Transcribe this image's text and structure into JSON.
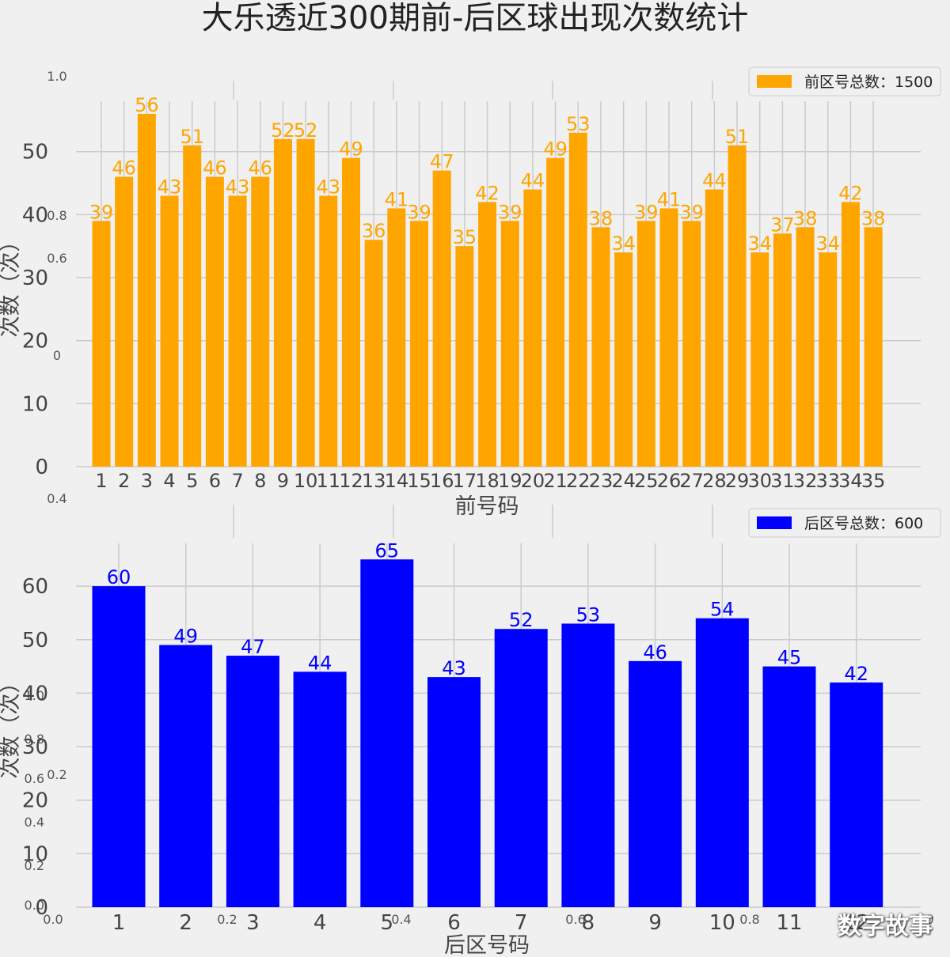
{
  "page": {
    "title": "大乐透近300期前-后区球出现次数统计",
    "watermark": "数字故事"
  },
  "colors": {
    "front": "#FFA500",
    "back": "#0000FF",
    "grid": "#CBCBCB",
    "background": "#F0F0F0",
    "text": "#444444"
  },
  "ghost_ticks": {
    "outer_y": [
      "0.0",
      "0.2",
      "0.4",
      "0.6",
      "0.8",
      "1.0"
    ],
    "outer_x": [
      "0.0",
      "0.2",
      "0.4",
      "0.6",
      "0.8",
      "1.0"
    ],
    "subplot_y": [
      "0",
      "0.2",
      "0.4",
      "0.6",
      "0.8",
      "1.0"
    ]
  },
  "chart_data": [
    {
      "type": "bar",
      "xlabel": "前号码",
      "ylabel": "次数（次）",
      "legend": {
        "label": "前区号总数：1500",
        "position": "top-right"
      },
      "ylim": [
        0,
        58
      ],
      "yticks": [
        0,
        10,
        20,
        30,
        40,
        50
      ],
      "categories": [
        "1",
        "2",
        "3",
        "4",
        "5",
        "6",
        "7",
        "8",
        "9",
        "10",
        "11",
        "12",
        "13",
        "14",
        "15",
        "16",
        "17",
        "18",
        "19",
        "20",
        "21",
        "22",
        "23",
        "24",
        "25",
        "26",
        "27",
        "28",
        "29",
        "30",
        "31",
        "32",
        "33",
        "34",
        "35"
      ],
      "values": [
        39,
        46,
        56,
        43,
        51,
        46,
        43,
        46,
        52,
        52,
        43,
        49,
        36,
        41,
        39,
        47,
        35,
        42,
        39,
        44,
        49,
        53,
        38,
        34,
        39,
        41,
        39,
        44,
        51,
        34,
        37,
        38,
        34,
        42,
        38
      ],
      "grid": true
    },
    {
      "type": "bar",
      "xlabel": "后区号码",
      "ylabel": "次数（次）",
      "legend": {
        "label": "后区号总数：600",
        "position": "top-right"
      },
      "ylim": [
        0,
        68
      ],
      "yticks": [
        0,
        10,
        20,
        30,
        40,
        50,
        60
      ],
      "categories": [
        "1",
        "2",
        "3",
        "4",
        "5",
        "6",
        "7",
        "8",
        "9",
        "10",
        "11",
        "12"
      ],
      "values": [
        60,
        49,
        47,
        44,
        65,
        43,
        52,
        53,
        46,
        54,
        45,
        42
      ],
      "grid": true
    }
  ]
}
